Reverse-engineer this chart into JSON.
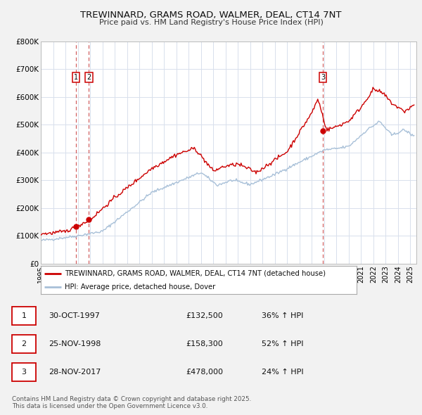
{
  "title_line1": "TREWINNARD, GRAMS ROAD, WALMER, DEAL, CT14 7NT",
  "title_line2": "Price paid vs. HM Land Registry's House Price Index (HPI)",
  "background_color": "#f2f2f2",
  "plot_bg_color": "#ffffff",
  "grid_color": "#d8e0ec",
  "hpi_color": "#a8c0d8",
  "price_color": "#cc0000",
  "sale_dot_color": "#cc0000",
  "vline_color": "#cc4444",
  "legend_entries": [
    {
      "label": "TREWINNARD, GRAMS ROAD, WALMER, DEAL, CT14 7NT (detached house)",
      "color": "#cc0000"
    },
    {
      "label": "HPI: Average price, detached house, Dover",
      "color": "#a8c0d8"
    }
  ],
  "table_rows": [
    {
      "num": "1",
      "date": "30-OCT-1997",
      "price": "£132,500",
      "pct": "36% ↑ HPI"
    },
    {
      "num": "2",
      "date": "25-NOV-1998",
      "price": "£158,300",
      "pct": "52% ↑ HPI"
    },
    {
      "num": "3",
      "date": "28-NOV-2017",
      "price": "£478,000",
      "pct": "24% ↑ HPI"
    }
  ],
  "footer": "Contains HM Land Registry data © Crown copyright and database right 2025.\nThis data is licensed under the Open Government Licence v3.0.",
  "ylim": [
    0,
    800000
  ],
  "xlim_start": 1995.0,
  "xlim_end": 2025.5,
  "yticks": [
    0,
    100000,
    200000,
    300000,
    400000,
    500000,
    600000,
    700000,
    800000
  ],
  "ytick_labels": [
    "£0",
    "£100K",
    "£200K",
    "£300K",
    "£400K",
    "£500K",
    "£600K",
    "£700K",
    "£800K"
  ],
  "xticks": [
    1995,
    1996,
    1997,
    1998,
    1999,
    2000,
    2001,
    2002,
    2003,
    2004,
    2005,
    2006,
    2007,
    2008,
    2009,
    2010,
    2011,
    2012,
    2013,
    2014,
    2015,
    2016,
    2017,
    2018,
    2019,
    2020,
    2021,
    2022,
    2023,
    2024,
    2025
  ],
  "sale_markers": [
    {
      "year": 1997.83,
      "price": 132500,
      "label": "1"
    },
    {
      "year": 1998.9,
      "price": 158300,
      "label": "2"
    },
    {
      "year": 2017.91,
      "price": 478000,
      "label": "3"
    }
  ]
}
